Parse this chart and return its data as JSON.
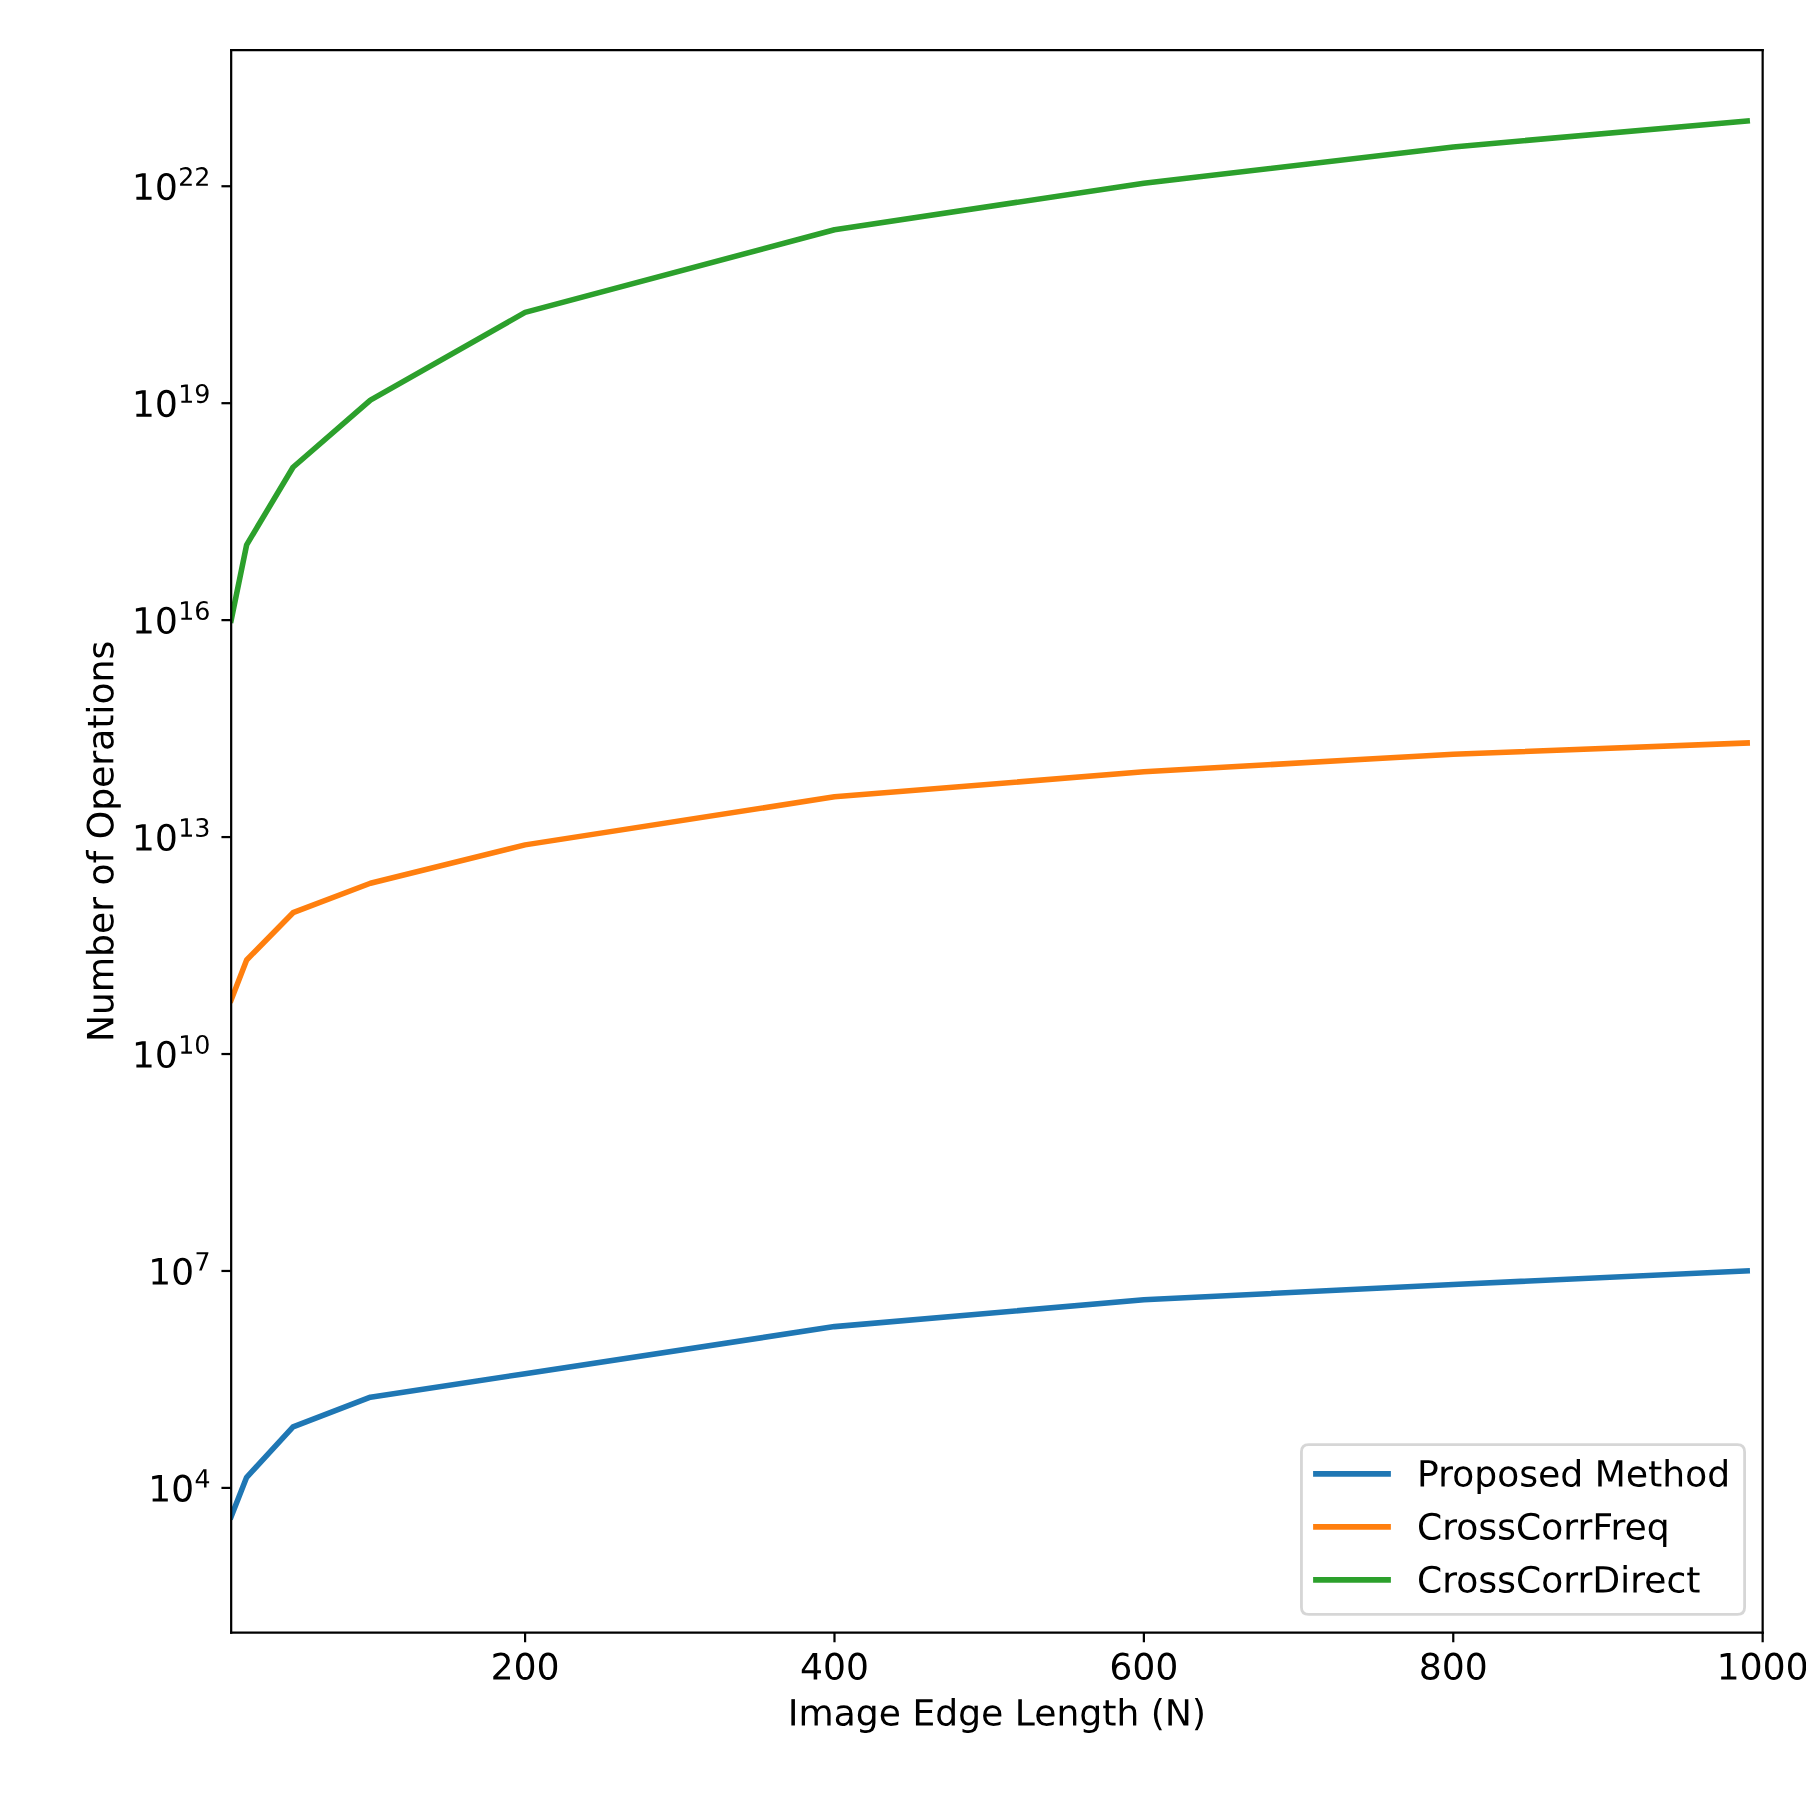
{
  "chart_data": {
    "type": "line",
    "xlabel": "Image Edge Length (N)",
    "ylabel": "Number of Operations",
    "x": [
      10,
      20,
      50,
      100,
      200,
      400,
      600,
      800,
      990
    ],
    "series": [
      {
        "name": "Proposed Method",
        "color": "#1f77b4",
        "values": [
          4000,
          14000,
          70000,
          180000,
          380000,
          1700000,
          4000000,
          6500000,
          10000000
        ]
      },
      {
        "name": "CrossCorrFreq",
        "color": "#ff7f0e",
        "values": [
          56000000000,
          200000000000,
          900000000000,
          2300000000000,
          7800000000000,
          36000000000000,
          80000000000000,
          140000000000000,
          200000000000000
        ]
      },
      {
        "name": "CrossCorrDirect",
        "color": "#2ca02c",
        "values": [
          1e+16,
          1.1e+17,
          1.3e+18,
          1.1e+19,
          1.8e+20,
          2.5e+21,
          1.1e+22,
          3.5e+22,
          8e+22
        ]
      }
    ],
    "log": "y",
    "xlim": [
      10,
      1000
    ],
    "xticks": [
      200,
      400,
      600,
      800,
      1000
    ],
    "ylim": [
      100,
      7.6e+23
    ],
    "yticks": [
      {
        "value": 10000,
        "label": "10$^{4}$"
      },
      {
        "value": 10000000.0,
        "label": "10$^{7}$"
      },
      {
        "value": 10000000000.0,
        "label": "10$^{10}$"
      },
      {
        "value": 10000000000000.0,
        "label": "10$^{13}$"
      },
      {
        "value": 1e+16,
        "label": "10$^{16}$"
      },
      {
        "value": 1e+19,
        "label": "10$^{19}$"
      },
      {
        "value": 1e+22,
        "label": "10$^{22}$"
      }
    ],
    "legend": "lower right",
    "grid": false
  }
}
